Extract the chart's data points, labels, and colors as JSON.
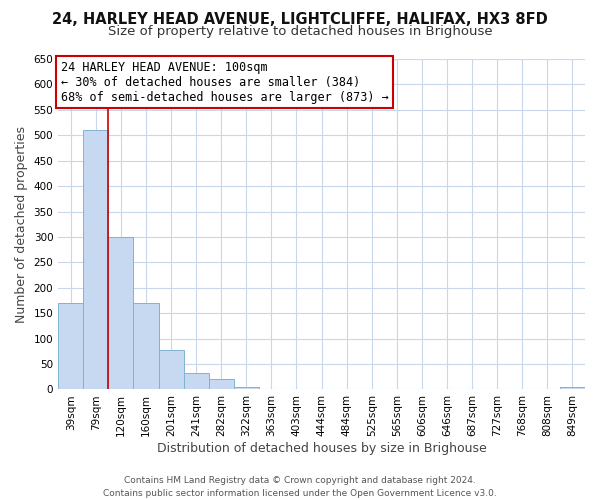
{
  "title": "24, HARLEY HEAD AVENUE, LIGHTCLIFFE, HALIFAX, HX3 8FD",
  "subtitle": "Size of property relative to detached houses in Brighouse",
  "xlabel": "Distribution of detached houses by size in Brighouse",
  "ylabel": "Number of detached properties",
  "bar_labels": [
    "39sqm",
    "79sqm",
    "120sqm",
    "160sqm",
    "201sqm",
    "241sqm",
    "282sqm",
    "322sqm",
    "363sqm",
    "403sqm",
    "444sqm",
    "484sqm",
    "525sqm",
    "565sqm",
    "606sqm",
    "646sqm",
    "687sqm",
    "727sqm",
    "768sqm",
    "808sqm",
    "849sqm"
  ],
  "bar_values": [
    170,
    510,
    300,
    170,
    78,
    32,
    20,
    5,
    0,
    0,
    0,
    0,
    0,
    0,
    0,
    0,
    0,
    0,
    0,
    0,
    5
  ],
  "bar_color": "#c6d9f0",
  "bar_edge_color": "#7fb3d3",
  "ylim": [
    0,
    650
  ],
  "yticks": [
    0,
    50,
    100,
    150,
    200,
    250,
    300,
    350,
    400,
    450,
    500,
    550,
    600,
    650
  ],
  "property_line_idx": 1,
  "property_line_color": "#cc0000",
  "annotation_line1": "24 HARLEY HEAD AVENUE: 100sqm",
  "annotation_line2": "← 30% of detached houses are smaller (384)",
  "annotation_line3": "68% of semi-detached houses are larger (873) →",
  "footer_text": "Contains HM Land Registry data © Crown copyright and database right 2024.\nContains public sector information licensed under the Open Government Licence v3.0.",
  "background_color": "#ffffff",
  "grid_color": "#c8d8ea",
  "title_fontsize": 10.5,
  "subtitle_fontsize": 9.5,
  "axis_label_fontsize": 9,
  "tick_fontsize": 7.5,
  "footer_fontsize": 6.5,
  "annotation_fontsize": 8.5
}
